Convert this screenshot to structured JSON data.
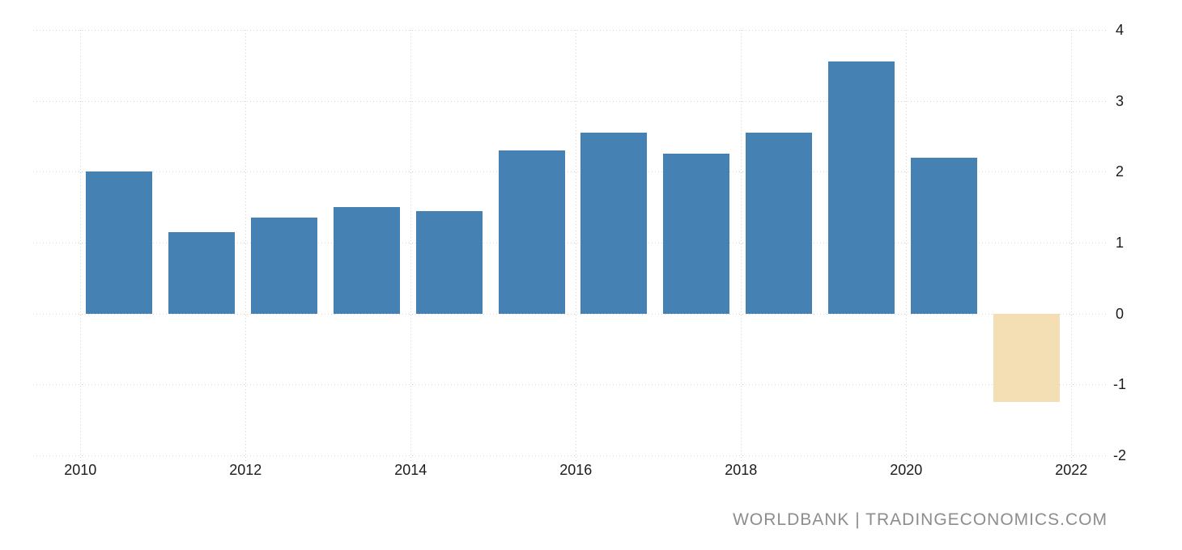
{
  "chart_data": {
    "type": "bar",
    "categories": [
      2010,
      2011,
      2012,
      2013,
      2014,
      2015,
      2016,
      2017,
      2018,
      2019,
      2020,
      2021
    ],
    "values": [
      2.0,
      1.15,
      1.35,
      1.5,
      1.45,
      2.3,
      2.55,
      2.25,
      2.55,
      3.55,
      2.2,
      -1.25
    ],
    "title": "",
    "xlabel": "",
    "ylabel": "",
    "ylim": [
      -2,
      4
    ],
    "y_ticks": [
      4,
      3,
      2,
      1,
      0,
      -1,
      -2
    ],
    "x_ticks": [
      2010,
      2012,
      2014,
      2016,
      2018,
      2020,
      2022
    ],
    "grid": "dotted",
    "legend": "none",
    "y_axis_side": "right",
    "bar_color_actual": "#4681b3",
    "bar_color_forecast": "#f4dfb4",
    "forecast_categories": [
      2021
    ],
    "gridline_color": "#d2d2d2",
    "tick_label_color": "#1b1b1b"
  },
  "footer": {
    "source_text": "WORLDBANK | TRADINGECONOMICS.COM",
    "source_color": "#8d8d8d"
  }
}
